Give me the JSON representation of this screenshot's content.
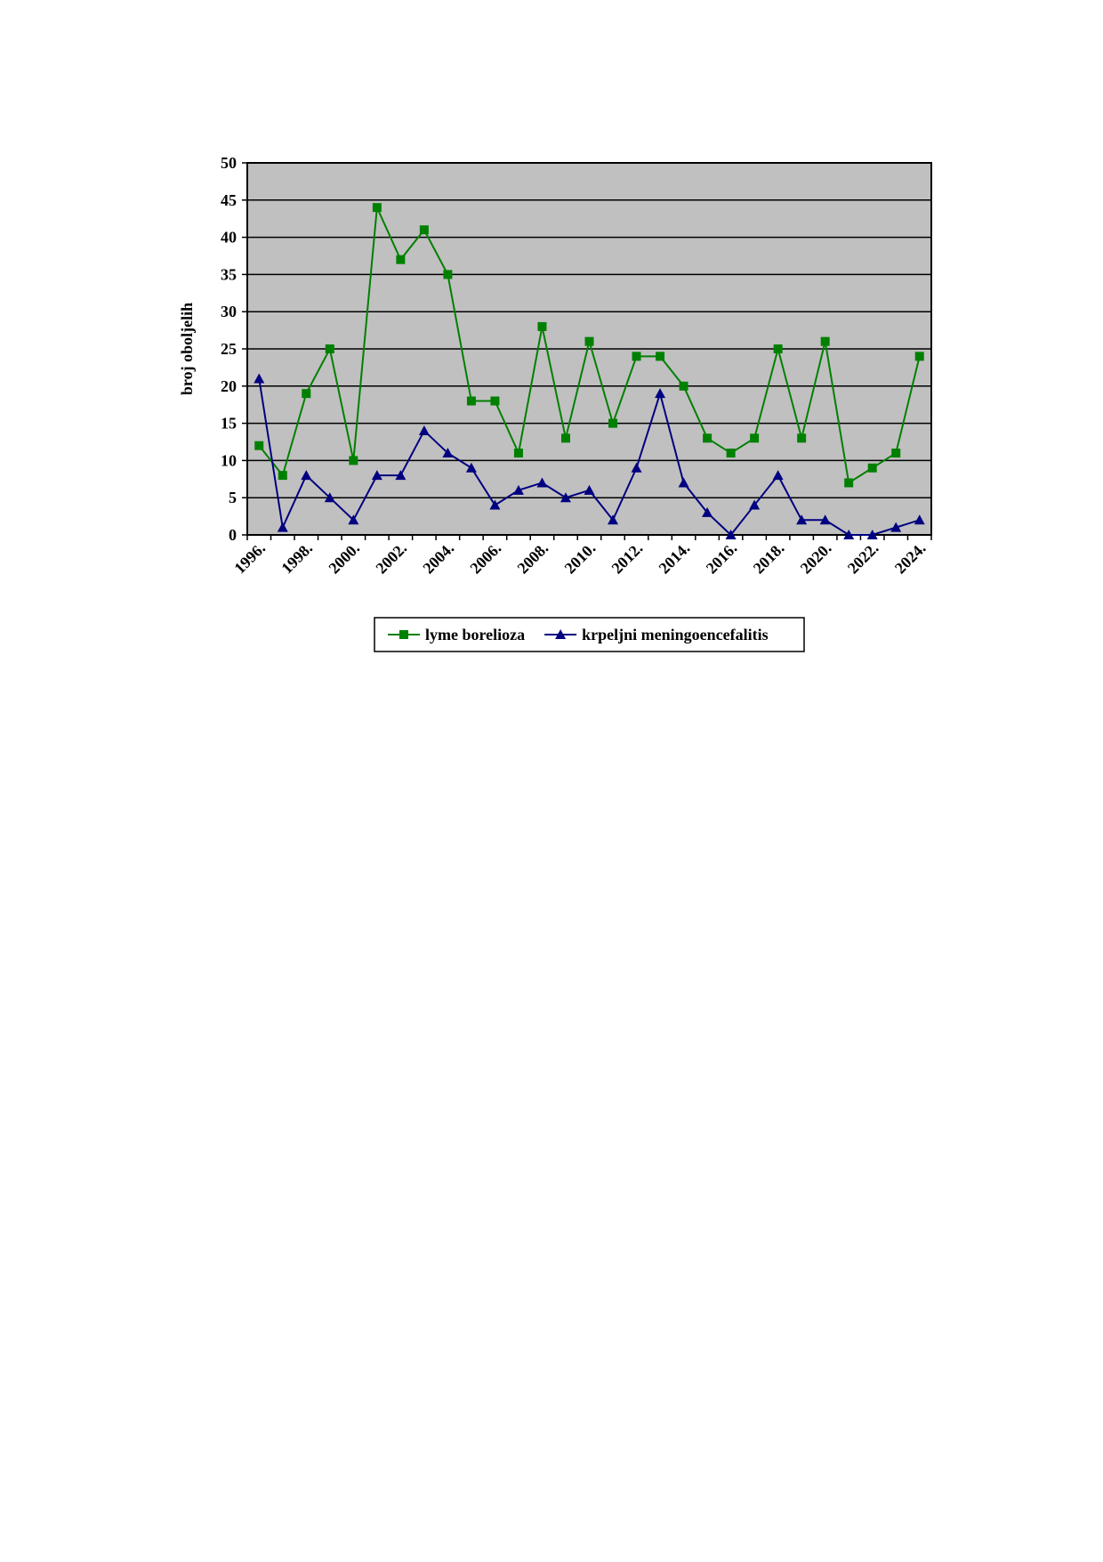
{
  "chart_data": {
    "type": "line",
    "y_label": "broj oboljelih",
    "categories": [
      "1996.",
      null,
      "1998.",
      null,
      "2000.",
      null,
      "2002.",
      null,
      "2004.",
      null,
      "2006.",
      null,
      "2008.",
      null,
      "2010.",
      null,
      "2012.",
      null,
      "2014.",
      null,
      "2016.",
      null,
      "2018.",
      null,
      "2020.",
      null,
      "2022.",
      null,
      "2024."
    ],
    "series": [
      {
        "name": "lyme borelioza",
        "color": "#008000",
        "marker": "square",
        "values": [
          12,
          8,
          19,
          25,
          10,
          44,
          37,
          41,
          35,
          18,
          18,
          11,
          28,
          13,
          26,
          15,
          24,
          24,
          20,
          13,
          11,
          13,
          25,
          13,
          26,
          7,
          9,
          11,
          24
        ]
      },
      {
        "name": "krpeljni meningoencefalitis",
        "color": "#000080",
        "marker": "triangle",
        "values": [
          21,
          1,
          8,
          5,
          2,
          8,
          8,
          14,
          11,
          9,
          4,
          6,
          7,
          5,
          6,
          2,
          9,
          19,
          7,
          3,
          0,
          4,
          8,
          2,
          2,
          0,
          0,
          1,
          2
        ]
      }
    ],
    "ylim": [
      0,
      50
    ],
    "yticks": [
      0,
      5,
      10,
      15,
      20,
      25,
      30,
      35,
      40,
      45,
      50
    ],
    "grid": true,
    "background": "#c0c0c0",
    "legend": "bottom"
  }
}
